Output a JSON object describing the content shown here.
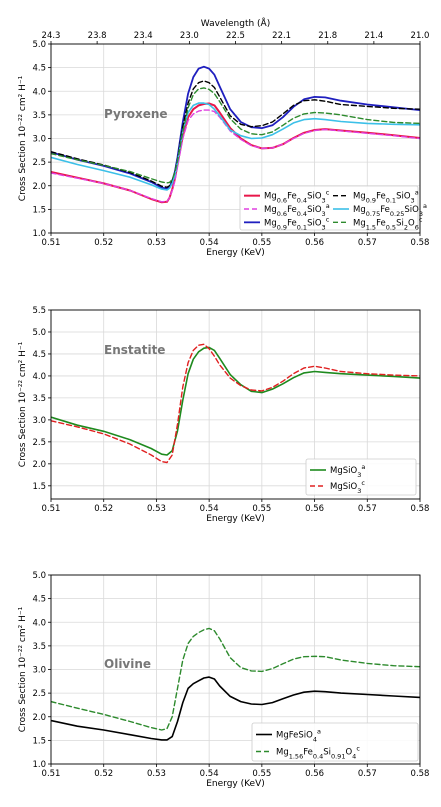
{
  "chart_data": [
    {
      "type": "line",
      "title": "Pyroxene",
      "xlabel": "Energy (KeV)",
      "ylabel": "Cross Section 10⁻²² cm² H⁻¹",
      "top_xlabel": "Wavelength (Å)",
      "xlim": [
        0.51,
        0.58
      ],
      "ylim": [
        1.0,
        5.0
      ],
      "xticks": [
        "0.51",
        "0.52",
        "0.53",
        "0.54",
        "0.55",
        "0.56",
        "0.57",
        "0.58"
      ],
      "yticks": [
        "1.0",
        "1.5",
        "2.0",
        "2.5",
        "3.0",
        "3.5",
        "4.0",
        "4.5",
        "5.0"
      ],
      "top_ticks": [
        "24.3",
        "23.8",
        "23.4",
        "23.0",
        "22.5",
        "22.1",
        "21.8",
        "21.4",
        "21.0"
      ],
      "grid": true,
      "legend": "bottom-right",
      "legend_columns": 2,
      "x": [
        0.51,
        0.515,
        0.52,
        0.525,
        0.529,
        0.531,
        0.532,
        0.5325,
        0.533,
        0.5335,
        0.534,
        0.535,
        0.536,
        0.537,
        0.538,
        0.539,
        0.54,
        0.541,
        0.542,
        0.544,
        0.546,
        0.548,
        0.55,
        0.552,
        0.554,
        0.556,
        0.558,
        0.56,
        0.562,
        0.565,
        0.57,
        0.575,
        0.58
      ],
      "series": [
        {
          "name": "Mg0.6Fe0.4SiO3",
          "sup": "c",
          "color": "#e8174a",
          "dash": "solid",
          "width": 2.0,
          "values": [
            2.29,
            2.17,
            2.05,
            1.9,
            1.72,
            1.65,
            1.66,
            1.75,
            1.92,
            2.15,
            2.45,
            3.05,
            3.45,
            3.62,
            3.7,
            3.73,
            3.74,
            3.7,
            3.55,
            3.22,
            3.0,
            2.86,
            2.79,
            2.8,
            2.88,
            3.01,
            3.12,
            3.18,
            3.2,
            3.17,
            3.12,
            3.07,
            3.01
          ]
        },
        {
          "name": "Mg0.6Fe0.4SiO3",
          "sup": "a",
          "color": "#e040e0",
          "dash": "5,3",
          "width": 1.4,
          "values": [
            2.27,
            2.16,
            2.05,
            1.9,
            1.73,
            1.66,
            1.67,
            1.75,
            1.9,
            2.1,
            2.4,
            3.0,
            3.38,
            3.52,
            3.58,
            3.6,
            3.6,
            3.57,
            3.45,
            3.16,
            2.98,
            2.85,
            2.79,
            2.8,
            2.88,
            3.0,
            3.11,
            3.17,
            3.19,
            3.16,
            3.11,
            3.06,
            3.0
          ]
        },
        {
          "name": "Mg0.9Fe0.1SiO3",
          "sup": "c",
          "color": "#1f1fbf",
          "dash": "solid",
          "width": 1.8,
          "values": [
            2.71,
            2.55,
            2.42,
            2.26,
            2.08,
            1.96,
            1.94,
            1.98,
            2.1,
            2.3,
            2.6,
            3.35,
            3.95,
            4.3,
            4.48,
            4.52,
            4.48,
            4.35,
            4.1,
            3.62,
            3.35,
            3.24,
            3.22,
            3.28,
            3.45,
            3.67,
            3.83,
            3.88,
            3.87,
            3.8,
            3.72,
            3.66,
            3.6
          ]
        },
        {
          "name": "Mg0.9Fe0.1SiO3",
          "sup": "a",
          "color": "#000000",
          "dash": "5,3",
          "width": 1.4,
          "values": [
            2.72,
            2.57,
            2.44,
            2.28,
            2.1,
            1.99,
            1.97,
            2.0,
            2.1,
            2.28,
            2.55,
            3.25,
            3.75,
            4.05,
            4.18,
            4.22,
            4.18,
            4.08,
            3.88,
            3.48,
            3.3,
            3.25,
            3.27,
            3.35,
            3.52,
            3.7,
            3.8,
            3.82,
            3.79,
            3.72,
            3.68,
            3.64,
            3.62
          ]
        },
        {
          "name": "Mg0.75Fe0.25SiO3",
          "sup": "a",
          "color": "#3cc0e8",
          "dash": "solid",
          "width": 1.6,
          "values": [
            2.6,
            2.45,
            2.32,
            2.18,
            2.02,
            1.93,
            1.91,
            1.95,
            2.05,
            2.23,
            2.5,
            3.15,
            3.55,
            3.7,
            3.75,
            3.75,
            3.72,
            3.62,
            3.48,
            3.18,
            3.06,
            3.0,
            3.01,
            3.08,
            3.2,
            3.33,
            3.4,
            3.42,
            3.4,
            3.36,
            3.32,
            3.3,
            3.29
          ]
        },
        {
          "name": "Mg1.5Fe0.5Si2O6",
          "sup": "c",
          "color": "#2d8a2d",
          "dash": "5,3",
          "width": 1.4,
          "values": [
            2.68,
            2.55,
            2.43,
            2.3,
            2.15,
            2.08,
            2.06,
            2.07,
            2.13,
            2.28,
            2.52,
            3.15,
            3.65,
            3.93,
            4.05,
            4.07,
            4.04,
            3.95,
            3.78,
            3.42,
            3.2,
            3.1,
            3.08,
            3.14,
            3.28,
            3.43,
            3.52,
            3.55,
            3.54,
            3.5,
            3.4,
            3.34,
            3.32
          ]
        }
      ]
    },
    {
      "type": "line",
      "title": "Enstatite",
      "xlabel": "Energy (KeV)",
      "ylabel": "Cross Section 10⁻²² cm² H⁻¹",
      "xlim": [
        0.51,
        0.58
      ],
      "ylim": [
        1.2,
        5.5
      ],
      "xticks": [
        "0.51",
        "0.52",
        "0.53",
        "0.54",
        "0.55",
        "0.56",
        "0.57",
        "0.58"
      ],
      "yticks": [
        "1.5",
        "2.0",
        "2.5",
        "3.0",
        "3.5",
        "4.0",
        "4.5",
        "5.0",
        "5.5"
      ],
      "grid": true,
      "legend": "bottom-right",
      "legend_columns": 1,
      "x": [
        0.51,
        0.515,
        0.52,
        0.525,
        0.529,
        0.531,
        0.532,
        0.533,
        0.534,
        0.535,
        0.536,
        0.537,
        0.538,
        0.539,
        0.54,
        0.541,
        0.542,
        0.544,
        0.546,
        0.548,
        0.55,
        0.552,
        0.554,
        0.556,
        0.558,
        0.56,
        0.562,
        0.565,
        0.57,
        0.575,
        0.58
      ],
      "series": [
        {
          "name": "MgSiO3",
          "sup": "a",
          "color": "#1e8a1e",
          "dash": "solid",
          "width": 1.6,
          "values": [
            3.06,
            2.88,
            2.74,
            2.55,
            2.35,
            2.22,
            2.2,
            2.3,
            2.75,
            3.45,
            4.05,
            4.38,
            4.55,
            4.63,
            4.65,
            4.58,
            4.4,
            4.03,
            3.8,
            3.65,
            3.62,
            3.7,
            3.82,
            3.96,
            4.07,
            4.1,
            4.08,
            4.05,
            4.02,
            3.99,
            3.95
          ]
        },
        {
          "name": "MgSiO3",
          "sup": "c",
          "color": "#e02020",
          "dash": "5,3",
          "width": 1.4,
          "values": [
            2.98,
            2.84,
            2.68,
            2.45,
            2.2,
            2.05,
            2.03,
            2.2,
            2.9,
            3.75,
            4.3,
            4.58,
            4.7,
            4.72,
            4.62,
            4.45,
            4.25,
            3.95,
            3.78,
            3.68,
            3.66,
            3.74,
            3.88,
            4.05,
            4.18,
            4.22,
            4.18,
            4.1,
            4.05,
            4.02,
            4.0
          ]
        }
      ]
    },
    {
      "type": "line",
      "title": "Olivine",
      "xlabel": "Energy (KeV)",
      "ylabel": "Cross Section 10⁻²² cm² H⁻¹",
      "xlim": [
        0.51,
        0.58
      ],
      "ylim": [
        1.0,
        5.0
      ],
      "xticks": [
        "0.51",
        "0.52",
        "0.53",
        "0.54",
        "0.55",
        "0.56",
        "0.57",
        "0.58"
      ],
      "yticks": [
        "1.0",
        "1.5",
        "2.0",
        "2.5",
        "3.0",
        "3.5",
        "4.0",
        "4.5",
        "5.0"
      ],
      "grid": true,
      "legend": "bottom-right",
      "legend_columns": 1,
      "x": [
        0.51,
        0.515,
        0.52,
        0.525,
        0.529,
        0.531,
        0.532,
        0.533,
        0.534,
        0.535,
        0.536,
        0.537,
        0.538,
        0.539,
        0.54,
        0.541,
        0.542,
        0.544,
        0.546,
        0.548,
        0.55,
        0.552,
        0.554,
        0.556,
        0.558,
        0.56,
        0.562,
        0.565,
        0.57,
        0.575,
        0.58
      ],
      "series": [
        {
          "name": "MgFeSiO4",
          "sup": "a",
          "color": "#000000",
          "dash": "solid",
          "width": 1.6,
          "values": [
            1.92,
            1.8,
            1.72,
            1.62,
            1.54,
            1.51,
            1.51,
            1.58,
            1.9,
            2.3,
            2.6,
            2.7,
            2.76,
            2.82,
            2.84,
            2.8,
            2.65,
            2.43,
            2.32,
            2.27,
            2.26,
            2.3,
            2.38,
            2.46,
            2.52,
            2.54,
            2.53,
            2.5,
            2.47,
            2.44,
            2.41
          ]
        },
        {
          "name": "Mg1.56Fe0.4Si0.91O4",
          "sup": "c",
          "color": "#2d8a2d",
          "dash": "5,3",
          "width": 1.4,
          "values": [
            2.32,
            2.18,
            2.05,
            1.9,
            1.77,
            1.72,
            1.75,
            2.0,
            2.6,
            3.2,
            3.55,
            3.7,
            3.78,
            3.84,
            3.87,
            3.82,
            3.65,
            3.25,
            3.04,
            2.97,
            2.96,
            3.02,
            3.12,
            3.22,
            3.27,
            3.28,
            3.27,
            3.2,
            3.13,
            3.08,
            3.06
          ]
        }
      ]
    }
  ]
}
